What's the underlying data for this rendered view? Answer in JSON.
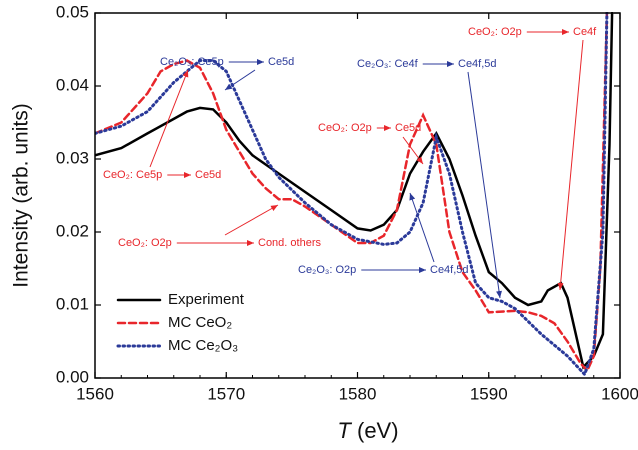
{
  "chart_data": {
    "type": "line",
    "x_label": [
      "T",
      "(eV)"
    ],
    "y_label": "Intensity (arb. units)",
    "xlim": [
      1560,
      1600
    ],
    "ylim": [
      0,
      0.05
    ],
    "xticks": [
      1560,
      1570,
      1580,
      1590,
      1600
    ],
    "yticks": [
      {
        "value": 0,
        "label": "0.00"
      },
      {
        "value": 0.01,
        "label": "0.01"
      },
      {
        "value": 0.02,
        "label": "0.02"
      },
      {
        "value": 0.03,
        "label": "0.03"
      },
      {
        "value": 0.04,
        "label": "0.04"
      },
      {
        "value": 0.05,
        "label": "0.05"
      }
    ],
    "legend": "lower left",
    "series": [
      {
        "name": "Experiment",
        "color": "#000000",
        "style": "solid",
        "x": [
          1560,
          1562,
          1564,
          1566,
          1567,
          1568,
          1569,
          1570,
          1571,
          1572,
          1574,
          1576,
          1578,
          1580,
          1581,
          1582,
          1583,
          1584,
          1585,
          1586,
          1587,
          1588,
          1589,
          1590,
          1591,
          1592,
          1593,
          1594,
          1594.5,
          1595.5,
          1596,
          1597.2,
          1598,
          1598.7,
          1599.2,
          1599.4
        ],
        "values": [
          0.0305,
          0.0315,
          0.0335,
          0.0355,
          0.0365,
          0.037,
          0.0368,
          0.035,
          0.0325,
          0.0305,
          0.028,
          0.0255,
          0.023,
          0.0205,
          0.0202,
          0.021,
          0.023,
          0.028,
          0.031,
          0.0335,
          0.03,
          0.025,
          0.0195,
          0.0145,
          0.013,
          0.011,
          0.01,
          0.0105,
          0.012,
          0.013,
          0.011,
          0.0015,
          0.003,
          0.006,
          0.032,
          0.05
        ]
      },
      {
        "name": "MC CeO₂",
        "color": "#e8262b",
        "style": "dashed",
        "x": [
          1560,
          1562,
          1564,
          1565,
          1566,
          1567,
          1568,
          1569,
          1570,
          1571,
          1572,
          1573,
          1574,
          1575,
          1576,
          1578,
          1580,
          1581,
          1582,
          1583,
          1584,
          1585,
          1586,
          1587,
          1588,
          1589,
          1590,
          1592,
          1593,
          1594,
          1595,
          1596,
          1597,
          1597.5,
          1598,
          1598.5,
          1599
        ],
        "values": [
          0.0335,
          0.035,
          0.039,
          0.042,
          0.043,
          0.0435,
          0.0425,
          0.039,
          0.034,
          0.031,
          0.028,
          0.026,
          0.0245,
          0.0245,
          0.0235,
          0.021,
          0.0185,
          0.0185,
          0.0195,
          0.023,
          0.032,
          0.036,
          0.032,
          0.02,
          0.0145,
          0.012,
          0.009,
          0.0092,
          0.009,
          0.0085,
          0.0075,
          0.005,
          0.002,
          0.001,
          0.003,
          0.015,
          0.05
        ]
      },
      {
        "name": "MC Ce₂O₃",
        "color": "#2b3a99",
        "style": "dotted",
        "x": [
          1560,
          1562,
          1564,
          1566,
          1567,
          1568,
          1569,
          1570,
          1571,
          1572,
          1573,
          1574,
          1576,
          1578,
          1580,
          1582,
          1583,
          1584,
          1585,
          1586,
          1587,
          1588,
          1589,
          1590,
          1591,
          1592,
          1594,
          1596,
          1597.3,
          1598,
          1598.7,
          1599
        ],
        "values": [
          0.0335,
          0.0345,
          0.0365,
          0.0405,
          0.042,
          0.0435,
          0.0435,
          0.042,
          0.038,
          0.034,
          0.03,
          0.0275,
          0.024,
          0.021,
          0.019,
          0.0183,
          0.0185,
          0.02,
          0.024,
          0.033,
          0.028,
          0.02,
          0.013,
          0.011,
          0.0105,
          0.0095,
          0.006,
          0.003,
          0.0005,
          0.004,
          0.02,
          0.05
        ]
      }
    ],
    "annotations": [
      {
        "from": "CeO₂: Ce5p",
        "to": "Ce5d",
        "color": "#e8262b"
      },
      {
        "from": "Ce₂O₃: Ce5p",
        "to": "Ce5d",
        "color": "#2b3a99"
      },
      {
        "from": "CeO₂: O2p",
        "to": "Cond. others",
        "color": "#e8262b"
      },
      {
        "from": "CeO₂: O2p",
        "to": "Ce5d",
        "color": "#e8262b"
      },
      {
        "from": "Ce₂O₃: Ce4f",
        "to": "Ce4f,5d",
        "color": "#2b3a99"
      },
      {
        "from": "Ce₂O₃: O2p",
        "to": "Ce4f,5d",
        "color": "#2b3a99"
      },
      {
        "from": "CeO₂: O2p",
        "to": "Ce4f",
        "color": "#e8262b"
      }
    ]
  }
}
